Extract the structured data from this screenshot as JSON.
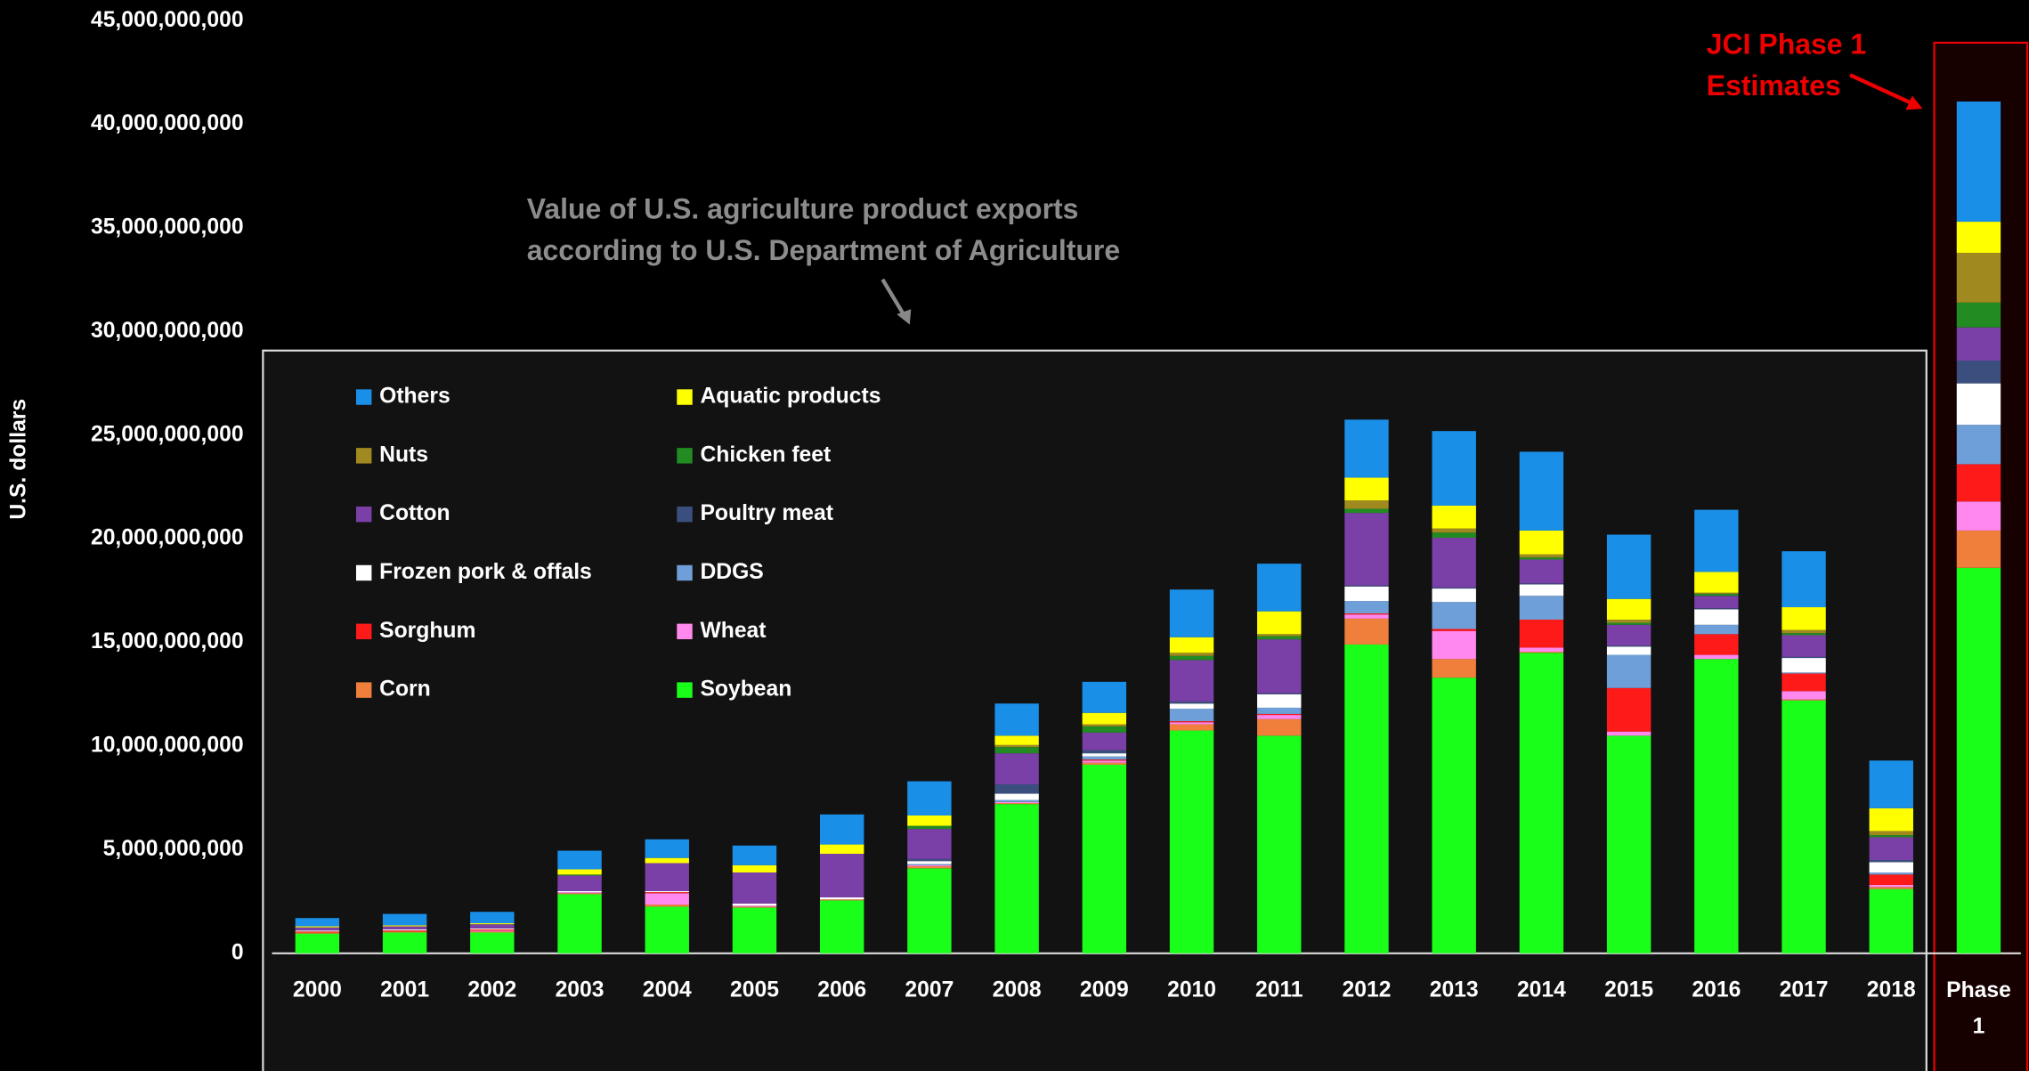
{
  "chart_data": {
    "type": "stacked_bar",
    "ylabel": "U.S. dollars",
    "annotations": [
      {
        "lines": [
          "Value of U.S. agriculture product exports",
          "according to U.S. Department of Agriculture"
        ]
      },
      {
        "lines": [
          "JCI Phase 1",
          "Estimates"
        ]
      }
    ],
    "categories": [
      "2000",
      "2001",
      "2002",
      "2003",
      "2004",
      "2005",
      "2006",
      "2007",
      "2008",
      "2009",
      "2010",
      "2011",
      "2012",
      "2013",
      "2014",
      "2015",
      "2016",
      "2017",
      "2018",
      "Phase 1"
    ],
    "ylim": [
      0,
      45000000000.0
    ],
    "yticks": [
      {
        "value": 0,
        "label": "0"
      },
      {
        "value": 5000000000.0,
        "label": "5,000,000,000"
      },
      {
        "value": 10000000000.0,
        "label": "10,000,000,000"
      },
      {
        "value": 15000000000.0,
        "label": "15,000,000,000"
      },
      {
        "value": 20000000000.0,
        "label": "20,000,000,000"
      },
      {
        "value": 25000000000.0,
        "label": "25,000,000,000"
      },
      {
        "value": 30000000000.0,
        "label": "30,000,000,000"
      },
      {
        "value": 35000000000.0,
        "label": "35,000,000,000"
      },
      {
        "value": 40000000000.0,
        "label": "40,000,000,000"
      },
      {
        "value": 45000000000.0,
        "label": "45,000,000,000"
      }
    ],
    "series": [
      {
        "name": "Soybean",
        "color": "#1aff1a",
        "values": [
          950000000.0,
          1000000000.0,
          1000000000.0,
          2850000000.0,
          2250000000.0,
          2200000000.0,
          2550000000.0,
          4100000000.0,
          7200000000.0,
          9100000000.0,
          10750000000.0,
          10500000000.0,
          14900000000.0,
          13300000000.0,
          14500000000.0,
          10500000000.0,
          14200000000.0,
          12200000000.0,
          3100000000.0,
          18600000000.0
        ]
      },
      {
        "name": "Corn",
        "color": "#f07f3c",
        "values": [
          50000000.0,
          50000000.0,
          50000000.0,
          50000000.0,
          100000000.0,
          50000000.0,
          50000000.0,
          100000000.0,
          50000000.0,
          100000000.0,
          300000000.0,
          800000000.0,
          1250000000.0,
          900000000.0,
          50000000.0,
          0,
          0,
          50000000.0,
          100000000.0,
          1800000000.0
        ]
      },
      {
        "name": "Wheat",
        "color": "#ff88ee",
        "values": [
          0,
          0,
          50000000.0,
          50000000.0,
          550000000.0,
          50000000.0,
          0,
          50000000.0,
          50000000.0,
          100000000.0,
          100000000.0,
          200000000.0,
          200000000.0,
          1350000000.0,
          200000000.0,
          200000000.0,
          200000000.0,
          400000000.0,
          100000000.0,
          1400000000.0
        ]
      },
      {
        "name": "Sorghum",
        "color": "#ff1a1a",
        "values": [
          50000000.0,
          50000000.0,
          50000000.0,
          0,
          50000000.0,
          0,
          0,
          0,
          0,
          50000000.0,
          50000000.0,
          50000000.0,
          50000000.0,
          100000000.0,
          1350000000.0,
          2100000000.0,
          1000000000.0,
          850000000.0,
          500000000.0,
          1800000000.0
        ]
      },
      {
        "name": "DDGS",
        "color": "#6f9fd8",
        "values": [
          0,
          0,
          0,
          0,
          0,
          0,
          0,
          50000000.0,
          100000000.0,
          150000000.0,
          600000000.0,
          300000000.0,
          600000000.0,
          1300000000.0,
          1150000000.0,
          1600000000.0,
          450000000.0,
          50000000.0,
          100000000.0,
          1900000000.0
        ]
      },
      {
        "name": "Frozen pork & offals",
        "color": "#ffffff",
        "values": [
          50000000.0,
          50000000.0,
          50000000.0,
          50000000.0,
          50000000.0,
          100000000.0,
          100000000.0,
          150000000.0,
          300000000.0,
          150000000.0,
          250000000.0,
          650000000.0,
          700000000.0,
          650000000.0,
          550000000.0,
          400000000.0,
          750000000.0,
          700000000.0,
          500000000.0,
          2000000000.0
        ]
      },
      {
        "name": "Poultry meat",
        "color": "#3b4f7f",
        "values": [
          0,
          0,
          0,
          0,
          0,
          0,
          0,
          100000000.0,
          450000000.0,
          150000000.0,
          100000000.0,
          50000000.0,
          50000000.0,
          50000000.0,
          50000000.0,
          50000000.0,
          50000000.0,
          50000000.0,
          100000000.0,
          1100000000.0
        ]
      },
      {
        "name": "Cotton",
        "color": "#7b3fa8",
        "values": [
          150000000.0,
          150000000.0,
          200000000.0,
          750000000.0,
          1350000000.0,
          1500000000.0,
          2100000000.0,
          1450000000.0,
          1500000000.0,
          850000000.0,
          2000000000.0,
          2600000000.0,
          3500000000.0,
          2400000000.0,
          1150000000.0,
          1000000000.0,
          600000000.0,
          1050000000.0,
          1100000000.0,
          1600000000.0
        ]
      },
      {
        "name": "Chicken feet",
        "color": "#228b22",
        "values": [
          0,
          0,
          0,
          50000000.0,
          0,
          0,
          0,
          150000000.0,
          300000000.0,
          300000000.0,
          200000000.0,
          150000000.0,
          200000000.0,
          250000000.0,
          100000000.0,
          100000000.0,
          100000000.0,
          100000000.0,
          100000000.0,
          1200000000.0
        ]
      },
      {
        "name": "Nuts",
        "color": "#a08a20",
        "values": [
          0,
          0,
          0,
          0,
          0,
          0,
          0,
          0,
          100000000.0,
          100000000.0,
          150000000.0,
          100000000.0,
          400000000.0,
          200000000.0,
          150000000.0,
          150000000.0,
          50000000.0,
          150000000.0,
          200000000.0,
          2400000000.0
        ]
      },
      {
        "name": "Aquatic products",
        "color": "#ffff00",
        "values": [
          50000000.0,
          50000000.0,
          50000000.0,
          250000000.0,
          250000000.0,
          350000000.0,
          450000000.0,
          500000000.0,
          450000000.0,
          550000000.0,
          750000000.0,
          1100000000.0,
          1100000000.0,
          1100000000.0,
          1150000000.0,
          1000000000.0,
          1000000000.0,
          1100000000.0,
          1100000000.0,
          1500000000.0
        ]
      },
      {
        "name": "Others",
        "color": "#1a8fe8",
        "values": [
          400000000.0,
          550000000.0,
          550000000.0,
          900000000.0,
          900000000.0,
          950000000.0,
          1450000000.0,
          1650000000.0,
          1550000000.0,
          1500000000.0,
          2300000000.0,
          2300000000.0,
          2800000000.0,
          3600000000.0,
          3800000000.0,
          3100000000.0,
          3000000000.0,
          2700000000.0,
          2300000000.0,
          5800000000.0
        ]
      }
    ]
  }
}
